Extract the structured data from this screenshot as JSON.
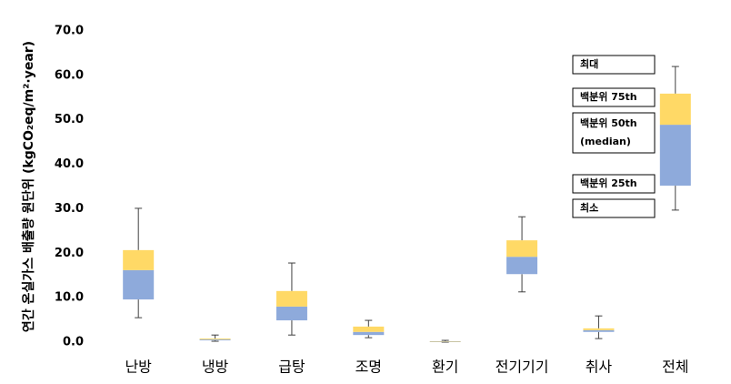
{
  "chart_data": {
    "type": "box",
    "y_label": "연간 온실가스 배출량 원단위 (kgCO₂eq/m²·year)",
    "categories": [
      "난방",
      "냉방",
      "급탕",
      "조명",
      "환기",
      "전기기기",
      "취사",
      "전체"
    ],
    "min": [
      5.5,
      0.2,
      1.6,
      1.0,
      0.0,
      11.3,
      0.8,
      29.7
    ],
    "q1": [
      9.6,
      0.4,
      4.9,
      1.6,
      0.0,
      15.3,
      2.3,
      35.2
    ],
    "median": [
      16.2,
      0.6,
      8.0,
      2.3,
      0.1,
      19.2,
      2.7,
      48.9
    ],
    "q3": [
      20.7,
      0.8,
      11.5,
      3.5,
      0.2,
      22.9,
      3.1,
      55.9
    ],
    "max": [
      30.1,
      1.6,
      17.8,
      4.9,
      0.4,
      28.2,
      5.9,
      62.0
    ],
    "upper_color": "#ffd966",
    "lower_color": "#8eaadb",
    "whisker_color": "#404040",
    "ylim": [
      0,
      70
    ],
    "yticks": [
      {
        "value": 0,
        "label": "0.0"
      },
      {
        "value": 10,
        "label": "10.0"
      },
      {
        "value": 20,
        "label": "20.0"
      },
      {
        "value": 30,
        "label": "30.0"
      },
      {
        "value": 40,
        "label": "40.0"
      },
      {
        "value": 50,
        "label": "50.0"
      },
      {
        "value": 60,
        "label": "60.0"
      },
      {
        "value": 70,
        "label": "70.0"
      }
    ],
    "annotations": [
      "최대",
      "백분위 75th",
      "백분위 50th",
      "(median)",
      "백분위 25th",
      "최소"
    ]
  }
}
